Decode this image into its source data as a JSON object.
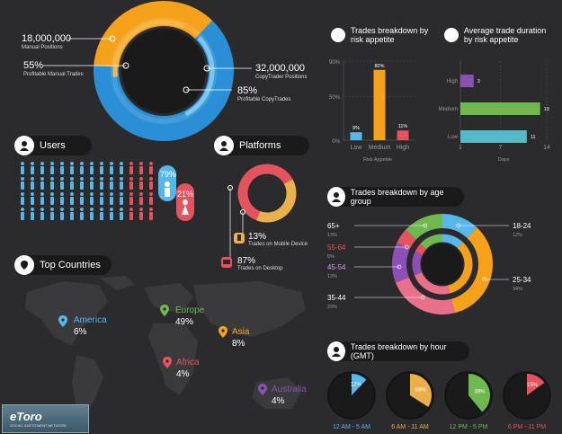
{
  "colors": {
    "orange": "#f5a11c",
    "blue": "#2b8fd6",
    "lightblue": "#57b6ea",
    "red": "#e5535f",
    "green": "#6fb84f",
    "purple": "#8e4fb4",
    "pink": "#e8708a",
    "teal": "#55b9c8",
    "yellow": "#e9b04b",
    "dark": "#1a1a1b"
  },
  "positions": {
    "manual_value": "18,000,000",
    "manual_label": "Manual Positions",
    "profitable_manual_value": "55%",
    "profitable_manual_label": "Profitable Manual Trades",
    "copy_value": "32,000,000",
    "copy_label": "CopyTrader Positions",
    "profitable_copy_value": "85%",
    "profitable_copy_label": "Profitable CopyTrades"
  },
  "users": {
    "title": "Users",
    "male_pct": "79%",
    "female_pct": "21%",
    "icons": "person-icons"
  },
  "platforms": {
    "title": "Platforms",
    "mobile_pct": "13%",
    "mobile_label": "Trades on Mobile Device",
    "desktop_pct": "87%",
    "desktop_label": "Trades on Desktop"
  },
  "countries": {
    "title": "Top Countries",
    "items": [
      {
        "name": "America",
        "pct": "6%",
        "color": "#57b6ea"
      },
      {
        "name": "Europe",
        "pct": "49%",
        "color": "#6fb84f"
      },
      {
        "name": "Asia",
        "pct": "8%",
        "color": "#f5a11c"
      },
      {
        "name": "Africa",
        "pct": "4%",
        "color": "#e5535f"
      },
      {
        "name": "Australia",
        "pct": "4%",
        "color": "#8e4fb4"
      }
    ]
  },
  "logo": {
    "name": "eToro",
    "tagline": "SOCIAL INVESTMENT NETWORK"
  },
  "chart_data": [
    {
      "type": "pie",
      "title": "",
      "slices": [
        {
          "label": "Manual Positions",
          "value": 18000000
        },
        {
          "label": "CopyTrader Positions",
          "value": 32000000
        }
      ]
    },
    {
      "type": "bar",
      "title": "Trades breakdown by risk appetite",
      "categories": [
        "Low",
        "Medium",
        "High"
      ],
      "values": [
        9,
        80,
        11
      ],
      "value_labels": [
        "9%",
        "80%",
        "11%"
      ],
      "yticks": [
        "0%",
        "50%",
        "90%"
      ],
      "ylim": [
        0,
        90
      ],
      "xlabel": "Risk Appetite"
    },
    {
      "type": "bar",
      "title": "Average trade duration by risk appetite",
      "orientation": "horizontal",
      "categories": [
        "High",
        "Medium",
        "Low"
      ],
      "values": [
        3,
        13,
        11
      ],
      "xticks": [
        "1",
        "7",
        "14"
      ],
      "xlim": [
        0,
        14
      ],
      "xlabel": "Days"
    },
    {
      "type": "pie",
      "title": "Trades breakdown by age group",
      "slices": [
        {
          "label": "18-24",
          "value": 12,
          "pct": "12%"
        },
        {
          "label": "25-34",
          "value": 34,
          "pct": "34%"
        },
        {
          "label": "35-44",
          "value": 23,
          "pct": "23%"
        },
        {
          "label": "45-54",
          "value": 13,
          "pct": "13%"
        },
        {
          "label": "55-64",
          "value": 5,
          "pct": "5%"
        },
        {
          "label": "65+",
          "value": 13,
          "pct": "13%"
        }
      ]
    },
    {
      "type": "pie",
      "title": "Trades breakdown by hour (GMT)",
      "slices": [
        {
          "label": "12 AM - 5 AM",
          "value": 12,
          "pct": "12%"
        },
        {
          "label": "6 AM - 11 AM",
          "value": 34,
          "pct": "34%"
        },
        {
          "label": "12 PM - 5 PM",
          "value": 39,
          "pct": "39%"
        },
        {
          "label": "6 PM - 11 PM",
          "value": 15,
          "pct": "15%"
        }
      ]
    }
  ]
}
